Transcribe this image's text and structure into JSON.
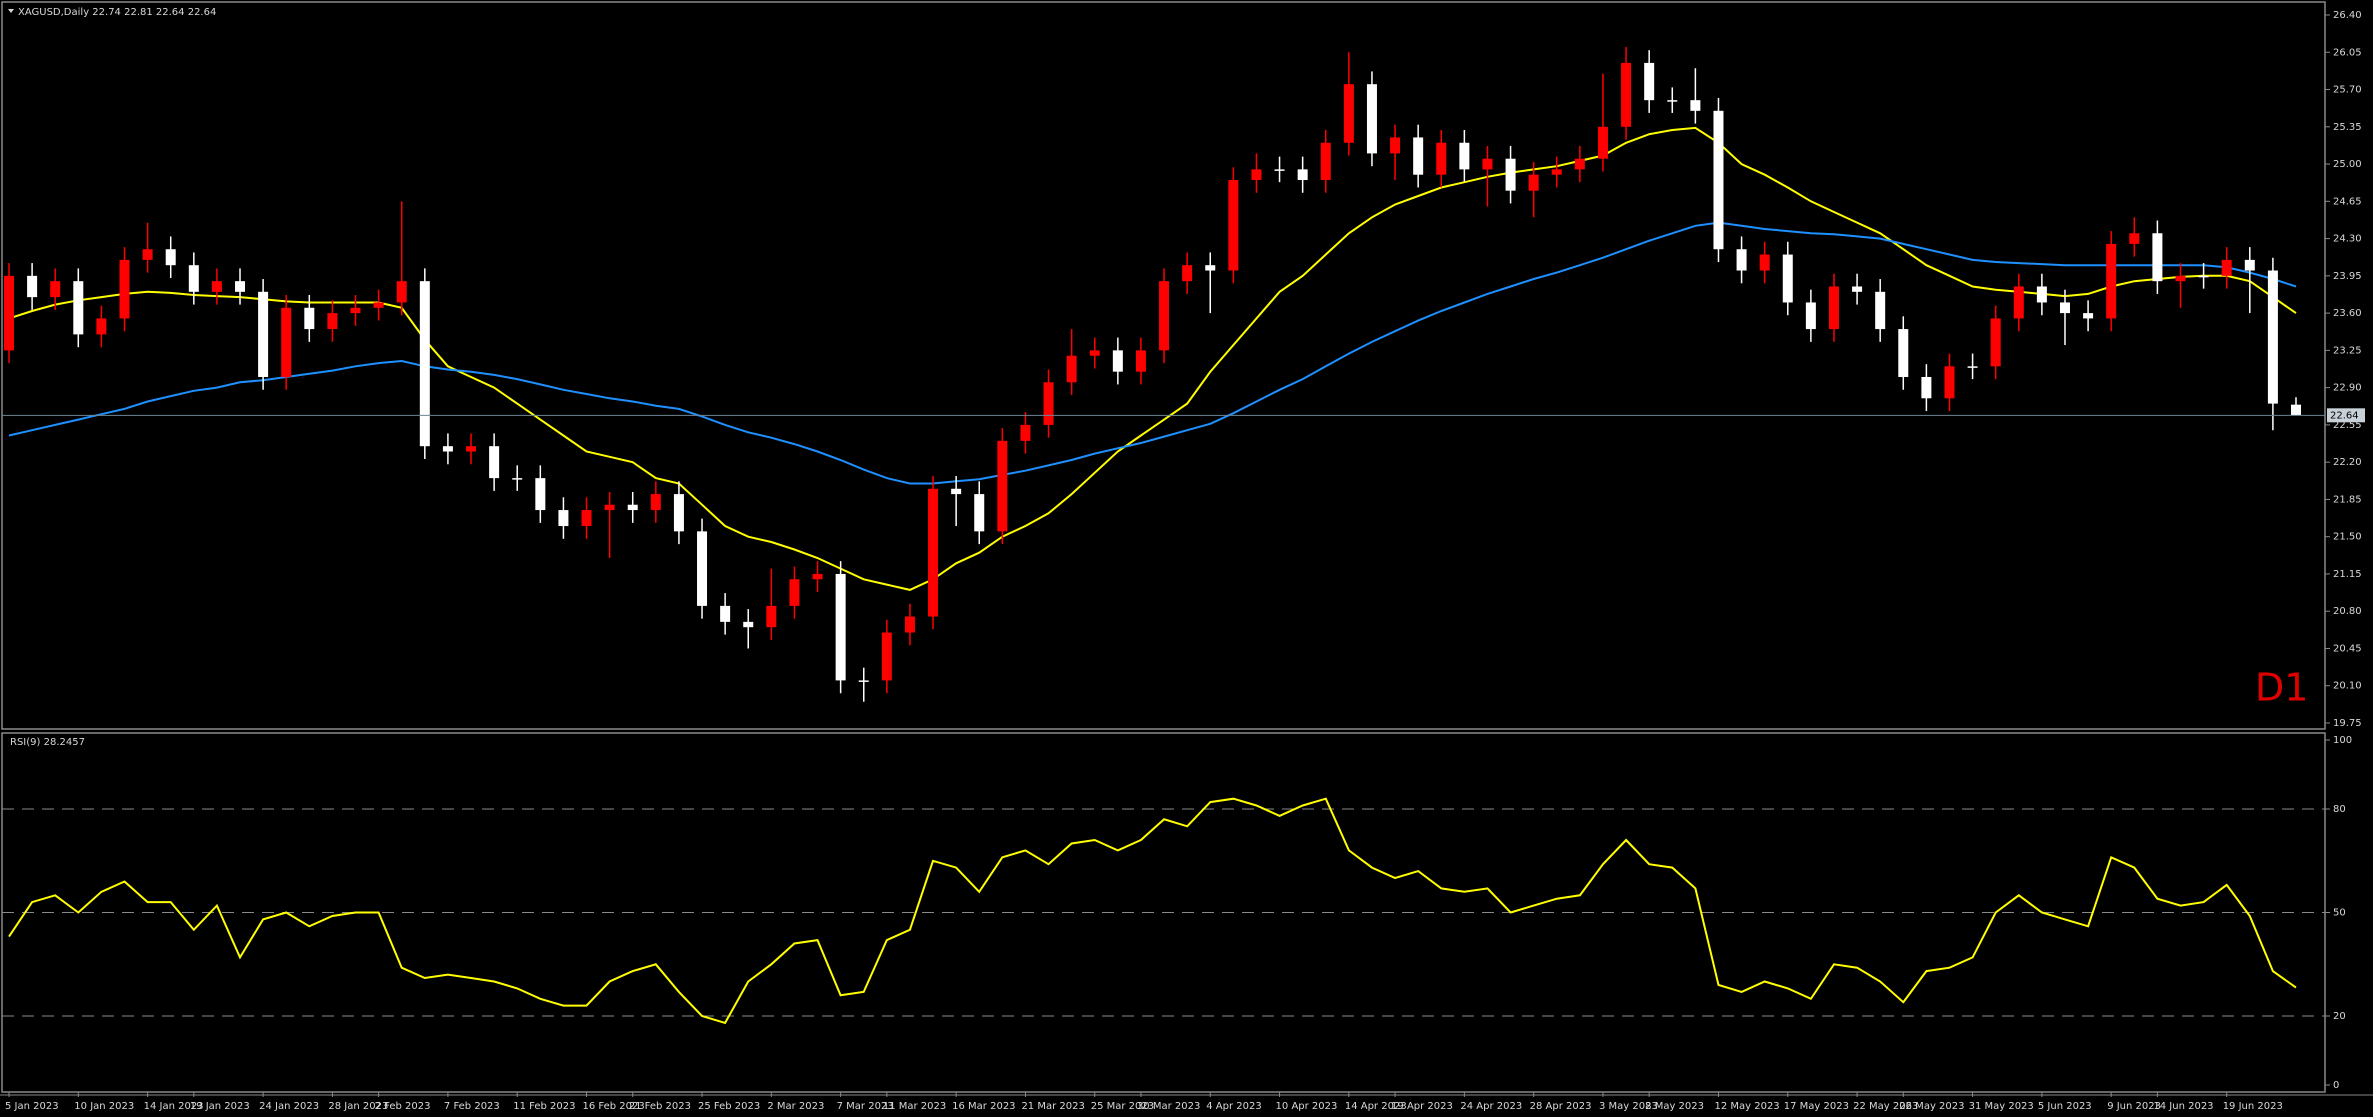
{
  "chart_data": [
    {
      "type": "candlestick",
      "title": "XAGUSD,Daily  22.74 22.81 22.64 22.64",
      "annotation": "D1",
      "categories": [
        "5 Jan 2023",
        null,
        null,
        "10 Jan 2023",
        null,
        null,
        "14 Jan 2023",
        null,
        "19 Jan 2023",
        null,
        null,
        "24 Jan 2023",
        null,
        null,
        "28 Jan 2023",
        null,
        "2 Feb 2023",
        null,
        null,
        "7 Feb 2023",
        null,
        null,
        "11 Feb 2023",
        null,
        null,
        "16 Feb 2023",
        null,
        "21 Feb 2023",
        null,
        null,
        "25 Feb 2023",
        null,
        null,
        "2 Mar 2023",
        null,
        null,
        "7 Mar 2023",
        null,
        "11 Mar 2023",
        null,
        null,
        "16 Mar 2023",
        null,
        null,
        "21 Mar 2023",
        null,
        null,
        "25 Mar 2023",
        null,
        "30 Mar 2023",
        null,
        null,
        "4 Apr 2023",
        null,
        null,
        "10 Apr 2023",
        null,
        null,
        "14 Apr 2023",
        null,
        "19 Apr 2023",
        null,
        null,
        "24 Apr 2023",
        null,
        null,
        "28 Apr 2023",
        null,
        null,
        "3 May 2023",
        null,
        "8 May 2023",
        null,
        null,
        "12 May 2023",
        null,
        null,
        "17 May 2023",
        null,
        null,
        "22 May 2023",
        null,
        "26 May 2023",
        null,
        null,
        "31 May 2023",
        null,
        null,
        "5 Jun 2023",
        null,
        null,
        "9 Jun 2023",
        null,
        "14 Jun 2023",
        null,
        null,
        "19 Jun 2023",
        null,
        null,
        null
      ],
      "open": [
        23.25,
        23.95,
        23.75,
        23.9,
        23.4,
        23.55,
        24.1,
        24.2,
        24.05,
        23.8,
        23.9,
        23.8,
        23.0,
        23.65,
        23.45,
        23.6,
        23.65,
        23.7,
        23.9,
        22.35,
        22.3,
        22.35,
        22.05,
        22.05,
        21.75,
        21.6,
        21.75,
        21.8,
        21.75,
        21.9,
        21.55,
        20.85,
        20.7,
        20.65,
        20.85,
        21.1,
        21.15,
        20.15,
        20.15,
        20.6,
        20.75,
        21.95,
        21.9,
        21.55,
        22.4,
        22.55,
        22.95,
        23.2,
        23.25,
        23.05,
        23.25,
        23.9,
        24.05,
        24.0,
        24.85,
        24.95,
        24.95,
        24.85,
        25.2,
        25.75,
        25.1,
        25.25,
        24.9,
        25.2,
        24.95,
        25.05,
        24.75,
        24.9,
        24.95,
        25.05,
        25.35,
        25.95,
        25.6,
        25.6,
        25.5,
        24.2,
        24.0,
        24.15,
        23.7,
        23.45,
        23.85,
        23.8,
        23.45,
        23.0,
        22.8,
        23.1,
        23.1,
        23.55,
        23.85,
        23.7,
        23.6,
        23.55,
        24.25,
        24.35,
        23.9,
        23.95,
        23.95,
        24.1,
        24.0,
        22.74
      ],
      "high": [
        24.07,
        24.07,
        24.02,
        24.02,
        23.67,
        24.22,
        24.45,
        24.32,
        24.17,
        24.02,
        24.02,
        23.92,
        23.77,
        23.77,
        23.72,
        23.77,
        23.82,
        24.65,
        24.02,
        22.47,
        22.47,
        22.47,
        22.17,
        22.17,
        21.87,
        21.87,
        21.92,
        21.92,
        22.02,
        22.02,
        21.67,
        20.97,
        20.82,
        21.2,
        21.22,
        21.27,
        21.27,
        20.27,
        20.72,
        20.87,
        22.07,
        22.07,
        22.02,
        22.52,
        22.67,
        23.07,
        23.45,
        23.37,
        23.37,
        23.37,
        24.02,
        24.17,
        24.17,
        24.97,
        25.1,
        25.07,
        25.07,
        25.32,
        26.05,
        25.87,
        25.37,
        25.37,
        25.32,
        25.32,
        25.17,
        25.17,
        25.02,
        25.07,
        25.17,
        25.85,
        26.1,
        26.07,
        25.72,
        25.9,
        25.62,
        24.32,
        24.27,
        24.27,
        23.82,
        23.97,
        23.97,
        23.92,
        23.57,
        23.12,
        23.22,
        23.22,
        23.67,
        23.97,
        23.97,
        23.82,
        23.72,
        24.37,
        24.5,
        24.47,
        24.07,
        24.07,
        24.22,
        24.22,
        24.12,
        22.81
      ],
      "low": [
        23.13,
        23.63,
        23.63,
        23.28,
        23.28,
        23.43,
        23.98,
        23.93,
        23.68,
        23.68,
        23.68,
        22.88,
        22.88,
        23.33,
        23.33,
        23.48,
        23.53,
        23.58,
        22.23,
        22.18,
        22.18,
        21.93,
        21.93,
        21.63,
        21.48,
        21.48,
        21.3,
        21.63,
        21.63,
        21.43,
        20.73,
        20.58,
        20.45,
        20.53,
        20.73,
        20.98,
        20.03,
        19.95,
        20.03,
        20.48,
        20.63,
        21.6,
        21.43,
        21.43,
        22.28,
        22.43,
        22.83,
        23.08,
        22.93,
        22.93,
        23.13,
        23.78,
        23.6,
        23.88,
        24.73,
        24.83,
        24.73,
        24.73,
        25.08,
        24.98,
        24.85,
        24.78,
        24.78,
        24.83,
        24.6,
        24.63,
        24.5,
        24.78,
        24.83,
        24.93,
        25.23,
        25.48,
        25.48,
        25.38,
        24.08,
        23.88,
        23.88,
        23.58,
        23.33,
        23.33,
        23.68,
        23.33,
        22.88,
        22.68,
        22.68,
        22.98,
        22.98,
        23.43,
        23.58,
        23.3,
        23.43,
        23.43,
        24.13,
        23.78,
        23.65,
        23.83,
        23.83,
        23.6,
        22.5,
        22.64
      ],
      "close": [
        23.95,
        23.75,
        23.9,
        23.4,
        23.55,
        24.1,
        24.2,
        24.05,
        23.8,
        23.9,
        23.8,
        23.0,
        23.65,
        23.45,
        23.6,
        23.65,
        23.7,
        23.9,
        22.35,
        22.3,
        22.35,
        22.05,
        22.05,
        21.75,
        21.6,
        21.75,
        21.8,
        21.75,
        21.9,
        21.55,
        20.85,
        20.7,
        20.65,
        20.85,
        21.1,
        21.15,
        20.15,
        20.15,
        20.6,
        20.75,
        21.95,
        21.9,
        21.55,
        22.4,
        22.55,
        22.95,
        23.2,
        23.25,
        23.05,
        23.25,
        23.9,
        24.05,
        24.0,
        24.85,
        24.95,
        24.95,
        24.85,
        25.2,
        25.75,
        25.1,
        25.25,
        24.9,
        25.2,
        24.95,
        25.05,
        24.75,
        24.9,
        24.95,
        25.05,
        25.35,
        25.95,
        25.6,
        25.6,
        25.5,
        24.2,
        24.0,
        24.15,
        23.7,
        23.45,
        23.85,
        23.8,
        23.45,
        23.0,
        22.8,
        23.1,
        23.1,
        23.55,
        23.85,
        23.7,
        23.6,
        23.55,
        24.25,
        24.35,
        23.9,
        23.95,
        23.95,
        24.1,
        24.0,
        22.75,
        22.64
      ],
      "up_color": "#ff0000",
      "down_color": "#ffffff",
      "series": [
        {
          "color": "#ffff00",
          "values": [
            23.55,
            23.62,
            23.68,
            23.72,
            23.75,
            23.78,
            23.8,
            23.79,
            23.77,
            23.76,
            23.75,
            23.73,
            23.71,
            23.7,
            23.7,
            23.7,
            23.7,
            23.65,
            23.35,
            23.1,
            23.0,
            22.9,
            22.75,
            22.6,
            22.45,
            22.3,
            22.25,
            22.2,
            22.05,
            22.0,
            21.8,
            21.6,
            21.5,
            21.45,
            21.38,
            21.3,
            21.2,
            21.1,
            21.05,
            21.0,
            21.1,
            21.25,
            21.35,
            21.5,
            21.6,
            21.72,
            21.9,
            22.1,
            22.3,
            22.45,
            22.6,
            22.75,
            23.05,
            23.3,
            23.55,
            23.8,
            23.95,
            24.15,
            24.35,
            24.5,
            24.62,
            24.7,
            24.78,
            24.83,
            24.88,
            24.92,
            24.95,
            24.98,
            25.03,
            25.08,
            25.2,
            25.28,
            25.32,
            25.34,
            25.2,
            25.0,
            24.9,
            24.78,
            24.65,
            24.55,
            24.45,
            24.35,
            24.2,
            24.05,
            23.95,
            23.85,
            23.82,
            23.8,
            23.78,
            23.76,
            23.78,
            23.85,
            23.9,
            23.92,
            23.94,
            23.95,
            23.95,
            23.9,
            23.75,
            23.6
          ]
        },
        {
          "color": "#1e90ff",
          "values": [
            22.45,
            22.5,
            22.55,
            22.6,
            22.65,
            22.7,
            22.77,
            22.82,
            22.87,
            22.9,
            22.95,
            22.97,
            23.0,
            23.03,
            23.06,
            23.1,
            23.13,
            23.15,
            23.1,
            23.07,
            23.05,
            23.02,
            22.98,
            22.93,
            22.88,
            22.84,
            22.8,
            22.77,
            22.73,
            22.7,
            22.63,
            22.55,
            22.48,
            22.43,
            22.37,
            22.3,
            22.22,
            22.13,
            22.05,
            22.0,
            22.0,
            22.02,
            22.04,
            22.08,
            22.12,
            22.17,
            22.22,
            22.28,
            22.33,
            22.38,
            22.44,
            22.5,
            22.56,
            22.66,
            22.77,
            22.88,
            22.98,
            23.1,
            23.22,
            23.33,
            23.43,
            23.53,
            23.62,
            23.7,
            23.78,
            23.85,
            23.92,
            23.98,
            24.05,
            24.12,
            24.2,
            24.28,
            24.35,
            24.42,
            24.45,
            24.42,
            24.39,
            24.37,
            24.35,
            24.34,
            24.32,
            24.3,
            24.25,
            24.2,
            24.15,
            24.1,
            24.08,
            24.07,
            24.06,
            24.05,
            24.05,
            24.05,
            24.05,
            24.05,
            24.05,
            24.05,
            24.03,
            23.98,
            23.92,
            23.85
          ]
        }
      ],
      "ylim": [
        19.75,
        26.4
      ],
      "yticks": [
        {
          "value": 26.4,
          "label": "26.40"
        },
        26.05,
        {
          "value": 25.7,
          "label": "25.70"
        },
        25.35,
        {
          "value": 25.0,
          "label": "25.00"
        },
        24.65,
        {
          "value": 24.3,
          "label": "24.30"
        },
        23.95,
        {
          "value": 23.6,
          "label": "23.60"
        },
        23.25,
        {
          "value": 22.9,
          "label": "22.90"
        },
        22.55,
        {
          "value": 22.2,
          "label": "22.20"
        },
        21.85,
        {
          "value": 21.5,
          "label": "21.50"
        },
        21.15,
        {
          "value": 20.8,
          "label": "20.80"
        },
        20.45,
        {
          "value": 20.1,
          "label": "20.10"
        },
        19.75
      ],
      "price_line": 22.64
    },
    {
      "type": "line",
      "title": "RSI(9) 28.2457",
      "color": "#ffff00",
      "values": [
        43,
        53,
        55,
        50,
        56,
        59,
        53,
        53,
        45,
        52,
        37,
        48,
        50,
        46,
        49,
        50,
        50,
        34,
        31,
        32,
        31,
        30,
        28,
        25,
        23,
        23,
        30,
        33,
        35,
        27,
        20,
        18,
        30,
        35,
        41,
        42,
        26,
        27,
        42,
        45,
        65,
        63,
        56,
        66,
        68,
        64,
        70,
        71,
        68,
        71,
        77,
        75,
        82,
        83,
        81,
        78,
        81,
        83,
        68,
        63,
        60,
        62,
        57,
        56,
        57,
        50,
        52,
        54,
        55,
        64,
        71,
        64,
        63,
        57,
        29,
        27,
        30,
        28,
        25,
        35,
        34,
        30,
        24,
        33,
        34,
        37,
        50,
        55,
        50,
        48,
        46,
        66,
        63,
        54,
        52,
        53,
        58,
        49,
        33,
        28.2457
      ],
      "ylim": [
        0,
        100
      ],
      "yticks": [
        0,
        20,
        50,
        80,
        100
      ],
      "levels": [
        20,
        50,
        80
      ]
    }
  ]
}
